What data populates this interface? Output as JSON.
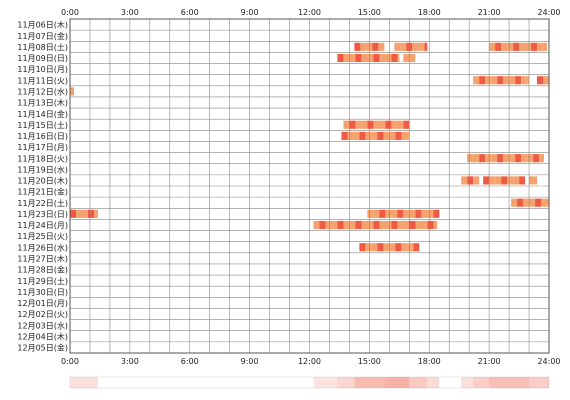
{
  "chart_data": {
    "type": "heatmap",
    "x_ticks": [
      "0:00",
      "3:00",
      "6:00",
      "9:00",
      "12:00",
      "15:00",
      "18:00",
      "21:00",
      "24:00"
    ],
    "x_range": [
      0,
      24
    ],
    "rows": [
      "11月06日(木)",
      "11月07日(金)",
      "11月08日(土)",
      "11月09日(日)",
      "11月10日(月)",
      "11月11日(火)",
      "11月12日(水)",
      "11月13日(木)",
      "11月14日(金)",
      "11月15日(土)",
      "11月16日(日)",
      "11月17日(月)",
      "11月18日(火)",
      "11月19日(水)",
      "11月20日(木)",
      "11月21日(金)",
      "11月22日(土)",
      "11月23日(日)",
      "11月24日(月)",
      "11月25日(火)",
      "11月26日(水)",
      "11月27日(木)",
      "11月28日(金)",
      "11月29日(土)",
      "11月30日(日)",
      "12月01日(月)",
      "12月02日(火)",
      "12月03日(水)",
      "12月04日(木)",
      "12月05日(金)"
    ],
    "grid": true,
    "segments": [
      {
        "row": 2,
        "start": 14.25,
        "end": 15.75
      },
      {
        "row": 2,
        "start": 16.25,
        "end": 17.9
      },
      {
        "row": 2,
        "start": 21.0,
        "end": 23.9
      },
      {
        "row": 3,
        "start": 13.4,
        "end": 16.5
      },
      {
        "row": 3,
        "start": 16.7,
        "end": 17.3
      },
      {
        "row": 5,
        "start": 20.2,
        "end": 23.0
      },
      {
        "row": 5,
        "start": 23.4,
        "end": 24.0
      },
      {
        "row": 6,
        "start": 0.0,
        "end": 0.2
      },
      {
        "row": 9,
        "start": 13.7,
        "end": 17.0
      },
      {
        "row": 10,
        "start": 13.6,
        "end": 17.0
      },
      {
        "row": 12,
        "start": 19.9,
        "end": 23.75
      },
      {
        "row": 14,
        "start": 19.6,
        "end": 20.5
      },
      {
        "row": 14,
        "start": 20.7,
        "end": 22.8
      },
      {
        "row": 14,
        "start": 23.0,
        "end": 23.4
      },
      {
        "row": 16,
        "start": 22.1,
        "end": 24.0
      },
      {
        "row": 17,
        "start": 0.0,
        "end": 1.4
      },
      {
        "row": 17,
        "start": 14.9,
        "end": 18.5
      },
      {
        "row": 18,
        "start": 12.2,
        "end": 18.4
      },
      {
        "row": 20,
        "start": 14.5,
        "end": 17.5
      }
    ],
    "density_bar": [
      {
        "start": 0.0,
        "end": 1.4,
        "level": 0.35
      },
      {
        "start": 12.2,
        "end": 13.4,
        "level": 0.3
      },
      {
        "start": 13.4,
        "end": 14.25,
        "level": 0.45
      },
      {
        "start": 14.25,
        "end": 15.75,
        "level": 0.75
      },
      {
        "start": 15.75,
        "end": 17.0,
        "level": 0.85
      },
      {
        "start": 17.0,
        "end": 17.9,
        "level": 0.6
      },
      {
        "start": 17.9,
        "end": 18.5,
        "level": 0.4
      },
      {
        "start": 19.6,
        "end": 20.2,
        "level": 0.35
      },
      {
        "start": 20.2,
        "end": 21.0,
        "level": 0.55
      },
      {
        "start": 21.0,
        "end": 23.0,
        "level": 0.7
      },
      {
        "start": 23.0,
        "end": 24.0,
        "level": 0.55
      }
    ],
    "colors": {
      "bar_light": "#f5a26e",
      "bar_dark": "#ef5a44",
      "grid": "#888888",
      "border": "#555555"
    }
  }
}
